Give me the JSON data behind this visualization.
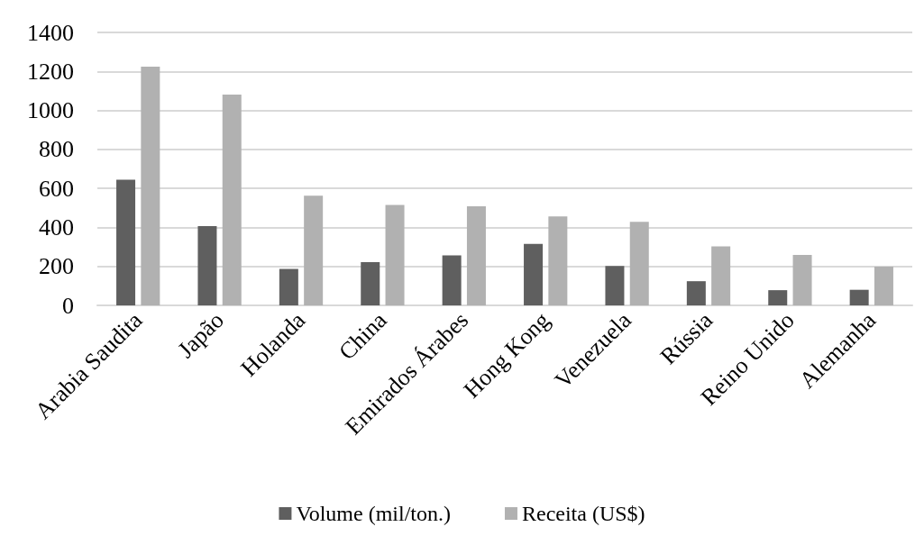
{
  "chart_data": {
    "type": "bar",
    "categories": [
      "Arabia Saudita",
      "Japão",
      "Holanda",
      "China",
      "Emirados Árabes",
      "Hong Kong",
      "Venezuela",
      "Rússia",
      "Reino Unido",
      "Alemanha"
    ],
    "series": [
      {
        "name": "Volume (mil/ton.)",
        "color": "#5f5f5f",
        "values": [
          645,
          407,
          187,
          222,
          257,
          315,
          202,
          124,
          78,
          80
        ]
      },
      {
        "name": "Receita (US$)",
        "color": "#b1b1b1",
        "values": [
          1225,
          1081,
          562,
          515,
          508,
          456,
          429,
          303,
          259,
          199
        ]
      }
    ],
    "ylim": [
      0,
      1400
    ],
    "yticks": [
      0,
      200,
      400,
      600,
      800,
      1000,
      1200,
      1400
    ],
    "grid": "y",
    "legend": "bottom"
  }
}
